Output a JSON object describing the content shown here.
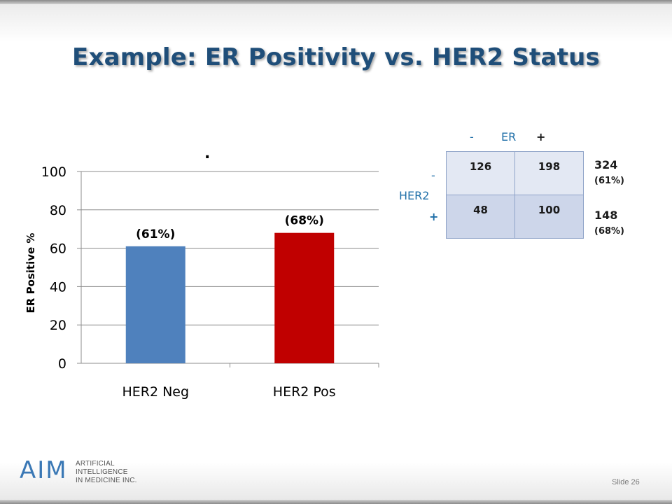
{
  "slide": {
    "title": "Example: ER Positivity vs. HER2 Status",
    "slide_number": "Slide 26",
    "dot": "."
  },
  "chart_data": {
    "type": "bar",
    "categories": [
      "HER2 Neg",
      "HER2 Pos"
    ],
    "values": [
      61,
      68
    ],
    "data_labels": [
      "(61%)",
      "(68%)"
    ],
    "colors": [
      "#4f81bd",
      "#c00000"
    ],
    "ylabel": "ER Positive %",
    "ylim": [
      0,
      100
    ],
    "yticks": [
      0,
      20,
      40,
      60,
      80,
      100
    ],
    "grid": true
  },
  "contingency_table": {
    "col_header": {
      "minus": "-",
      "label": "ER",
      "plus": "+"
    },
    "row_header": {
      "minus": "-",
      "label": "HER2",
      "plus": "+"
    },
    "rows": [
      [
        "126",
        "198"
      ],
      [
        "48",
        "100"
      ]
    ],
    "totals": [
      {
        "count": "324",
        "percent": "(61%)"
      },
      {
        "count": "148",
        "percent": "(68%)"
      }
    ]
  },
  "logo": {
    "mark": "AIM",
    "line1": "ARTIFICIAL",
    "line2": "INTELLIGENCE",
    "line3": "IN MEDICINE INC."
  }
}
